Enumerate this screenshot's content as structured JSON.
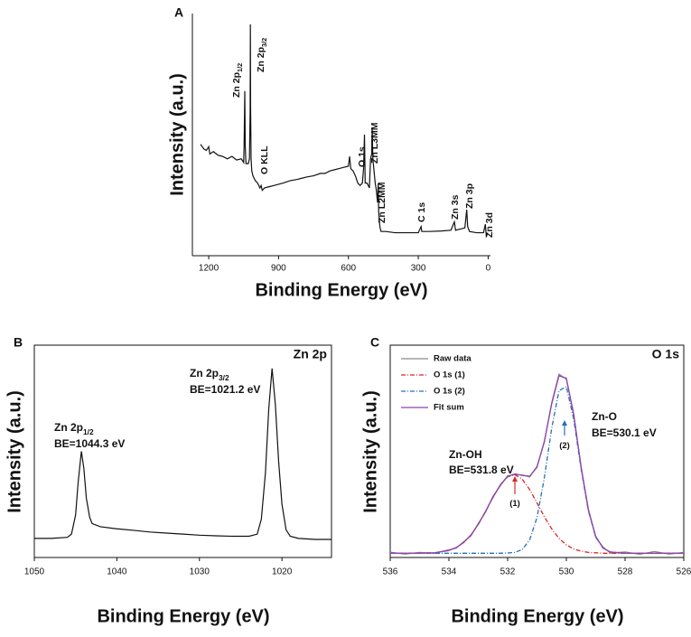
{
  "chart_data": [
    {
      "type": "line",
      "panel": "A",
      "x_label": "Binding Energy (eV)",
      "y_label": "Intensity (a.u.)",
      "xlim": [
        1270,
        -10
      ],
      "xticks": [
        1200,
        900,
        600,
        300,
        0
      ],
      "ylim": [
        0,
        100
      ],
      "x": [
        1235,
        1220,
        1210,
        1200,
        1195,
        1180,
        1160,
        1140,
        1120,
        1100,
        1080,
        1060,
        1050,
        1048,
        1045,
        1043,
        1040,
        1030,
        1025,
        1022,
        1021,
        1020,
        1018,
        1015,
        1010,
        1000,
        990,
        980,
        975,
        970,
        960,
        940,
        920,
        900,
        880,
        850,
        820,
        800,
        780,
        750,
        720,
        700,
        680,
        660,
        640,
        620,
        600,
        595,
        590,
        580,
        570,
        560,
        550,
        540,
        535,
        531,
        528,
        520,
        510,
        505,
        500,
        498,
        495,
        490,
        485,
        480,
        475,
        472,
        470,
        465,
        460,
        440,
        400,
        350,
        300,
        288,
        285,
        250,
        200,
        160,
        145,
        140,
        120,
        100,
        92,
        88,
        80,
        50,
        20,
        12,
        8,
        2
      ],
      "series": [
        {
          "color": "#111111",
          "values": [
            46,
            44,
            43.5,
            45,
            42,
            43,
            41.5,
            41,
            40,
            41,
            39.5,
            40,
            38.5,
            45,
            68,
            45,
            38,
            38,
            40,
            60,
            95.5,
            62,
            40,
            35,
            33,
            31,
            30,
            28,
            29,
            27,
            28,
            28.5,
            29,
            29.5,
            30,
            31,
            31.5,
            32,
            32.5,
            33,
            34,
            34,
            35,
            35.5,
            36,
            36.5,
            37,
            41,
            36,
            35,
            33,
            30,
            29,
            30,
            36,
            50,
            30,
            30,
            28,
            40,
            42,
            53,
            40,
            35,
            30,
            27,
            22,
            30,
            18,
            12,
            10,
            10,
            9.5,
            9.5,
            9.5,
            12,
            10,
            10,
            10.2,
            10.5,
            14,
            10.5,
            11,
            11.5,
            19,
            12,
            10,
            9.5,
            9.5,
            13,
            8,
            9
          ]
        }
      ],
      "annotations": [
        {
          "text": "Zn 2p",
          "sub": "1/2"
        },
        {
          "text": "Zn 2p",
          "sub": "3/2"
        },
        {
          "text": "O KLL",
          "color": "#c8102e"
        },
        {
          "text": "O 1s",
          "color": "#c8102e"
        },
        {
          "text": "Zn L3MM"
        },
        {
          "text": "Zn L2MM"
        },
        {
          "text": "C 1s",
          "color": "#c8102e"
        },
        {
          "text": "Zn 3s"
        },
        {
          "text": "Zn 3p"
        },
        {
          "text": "Zn 3d"
        }
      ]
    },
    {
      "type": "line",
      "panel": "B",
      "title": "Zn 2p",
      "x_label": "Binding Energy (eV)",
      "y_label": "Intensity (a.u.)",
      "xlim": [
        1050,
        1014
      ],
      "xticks": [
        1050,
        1040,
        1030,
        1020
      ],
      "ylim": [
        0,
        100
      ],
      "x": [
        1050,
        1048,
        1046,
        1045.5,
        1045,
        1044.7,
        1044.3,
        1044,
        1043.7,
        1043.3,
        1043,
        1042,
        1040,
        1038,
        1036,
        1034,
        1032,
        1030,
        1028,
        1026,
        1024,
        1023,
        1022.5,
        1022,
        1021.6,
        1021.2,
        1020.8,
        1020.4,
        1020,
        1019.5,
        1019,
        1018,
        1016,
        1014
      ],
      "series": [
        {
          "color": "#111111",
          "values": [
            9,
            9,
            9.5,
            11,
            20,
            35,
            50,
            42,
            28,
            19,
            16,
            14.5,
            13.5,
            12.8,
            12,
            11.5,
            11,
            10.5,
            10.2,
            10,
            10,
            11,
            18,
            40,
            70,
            89,
            72,
            45,
            25,
            13,
            10,
            9,
            8.5,
            8.5
          ]
        }
      ],
      "annotations": [
        {
          "text": "Zn 2p",
          "sub": "3/2"
        },
        {
          "text": "BE=1021.2 eV"
        },
        {
          "text": "Zn 2p",
          "sub": "1/2"
        },
        {
          "text": "BE=1044.3 eV"
        }
      ]
    },
    {
      "type": "line",
      "panel": "C",
      "title": "O 1s",
      "x_label": "Binding Energy (eV)",
      "y_label": "Intensity (a.u.)",
      "xlim": [
        536,
        526
      ],
      "xticks": [
        536,
        534,
        532,
        530,
        528,
        526
      ],
      "ylim": [
        0,
        100
      ],
      "x": [
        536,
        535.5,
        535,
        534.5,
        534,
        533.75,
        533.5,
        533.25,
        533,
        532.75,
        532.5,
        532.25,
        532,
        531.75,
        531.5,
        531.25,
        531,
        530.75,
        530.5,
        530.25,
        530,
        529.75,
        529.5,
        529.25,
        529,
        528.75,
        528.5,
        528,
        527.5,
        527,
        526.5,
        526
      ],
      "series": [
        {
          "name": "Raw data",
          "color": "#8a8a8a",
          "values": [
            2.5,
            1.6,
            2.4,
            2.0,
            3.6,
            4.4,
            7.4,
            10.2,
            16.0,
            21.4,
            28.8,
            33.8,
            38.5,
            39.0,
            38.9,
            37.9,
            42.9,
            54.3,
            72.8,
            86.3,
            84.0,
            67.8,
            42.5,
            22.8,
            9.5,
            4.9,
            2.1,
            2.6,
            1.5,
            2.8,
            1.6,
            2.4
          ]
        },
        {
          "name": "O 1s (1)",
          "color": "#d62728",
          "values": [
            2,
            2,
            2,
            2.2,
            3.3,
            4.7,
            7,
            10.6,
            15.6,
            21.8,
            28.3,
            34.2,
            38,
            39,
            36.8,
            32,
            25.7,
            19.2,
            13.5,
            9,
            5.9,
            4,
            3,
            2.4,
            2.2,
            2,
            2,
            2,
            2,
            2,
            2,
            2
          ]
        },
        {
          "name": "O 1s (2)",
          "color": "#2a6fb5",
          "values": [
            2,
            2,
            2,
            2,
            2,
            2,
            2,
            2,
            2,
            2,
            2,
            2,
            2.1,
            2.4,
            3.8,
            8.3,
            18.8,
            37.5,
            60.8,
            78.6,
            80.5,
            65.2,
            42,
            21.9,
            9.8,
            4.4,
            2.6,
            2,
            2,
            2,
            2,
            2
          ]
        },
        {
          "name": "Fit sum",
          "color": "#8e44ad",
          "values": [
            2,
            2,
            2,
            2.2,
            3.3,
            4.7,
            7,
            10.6,
            15.6,
            21.8,
            28.3,
            34.2,
            38.1,
            39.4,
            38.6,
            38.3,
            42.5,
            54.7,
            72.3,
            85.6,
            84.4,
            67.2,
            43,
            22.3,
            10,
            4.4,
            2.6,
            2,
            2,
            2,
            2,
            2
          ]
        }
      ],
      "annotations": [
        {
          "text": "Zn-O"
        },
        {
          "text": "BE=530.1 eV"
        },
        {
          "text": "Zn-OH"
        },
        {
          "text": "BE=531.8 eV"
        },
        {
          "text": "(1)"
        },
        {
          "text": "(2)"
        }
      ]
    }
  ]
}
